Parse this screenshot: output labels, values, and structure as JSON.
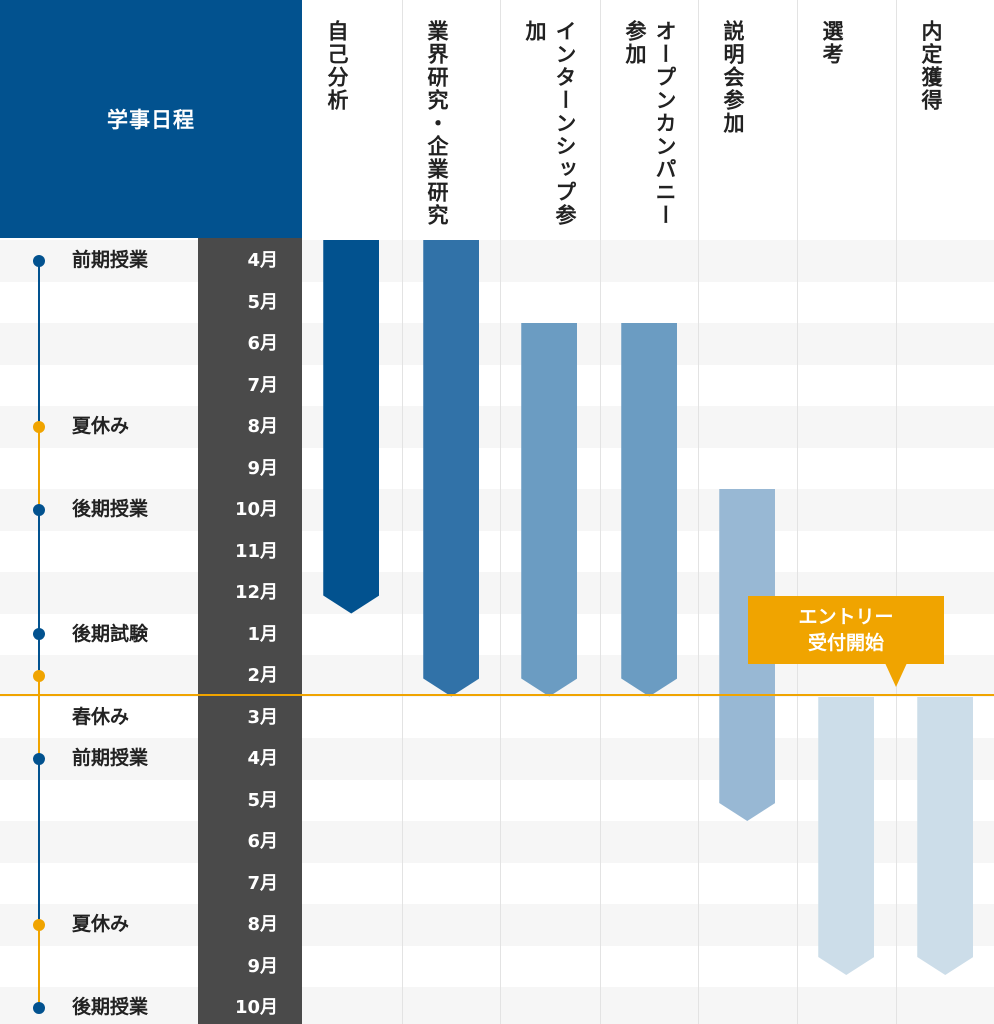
{
  "header": {
    "title": "学事日程"
  },
  "columns": [
    {
      "id": "self_analysis",
      "label": "自己分析"
    },
    {
      "id": "industry_research",
      "label": "業界研究・企業研究"
    },
    {
      "id": "internship",
      "label": "インターンシップ参加"
    },
    {
      "id": "open_company",
      "label": "オープンカンパニー参加"
    },
    {
      "id": "info_session",
      "label": "説明会参加"
    },
    {
      "id": "selection",
      "label": "選考"
    },
    {
      "id": "offer",
      "label": "内定獲得"
    }
  ],
  "months": [
    "4月",
    "5月",
    "6月",
    "7月",
    "8月",
    "9月",
    "10月",
    "11月",
    "12月",
    "1月",
    "2月",
    "3月",
    "4月",
    "5月",
    "6月",
    "7月",
    "8月",
    "9月",
    "10月"
  ],
  "terms": [
    {
      "label": "前期授業",
      "row": 0,
      "dot": "blue"
    },
    {
      "label": "夏休み",
      "row": 4,
      "dot": "orange"
    },
    {
      "label": "後期授業",
      "row": 6,
      "dot": "blue"
    },
    {
      "label": "後期試験",
      "row": 9,
      "dot": "blue"
    },
    {
      "label": "",
      "row": 10,
      "dot": "orange"
    },
    {
      "label": "春休み",
      "row": 11,
      "dot": "none"
    },
    {
      "label": "前期授業",
      "row": 12,
      "dot": "blue"
    },
    {
      "label": "夏休み",
      "row": 16,
      "dot": "orange"
    },
    {
      "label": "後期授業",
      "row": 18,
      "dot": "blue"
    }
  ],
  "bars": [
    {
      "column": "self_analysis",
      "start_month_index": 0,
      "end_month_index": 8,
      "color": "#02528f"
    },
    {
      "column": "industry_research",
      "start_month_index": 0,
      "end_month_index": 10,
      "color": "#3172a8"
    },
    {
      "column": "internship",
      "start_month_index": 2,
      "end_month_index": 10,
      "color": "#6b9cc2"
    },
    {
      "column": "open_company",
      "start_month_index": 2,
      "end_month_index": 10,
      "color": "#6b9cc2"
    },
    {
      "column": "info_session",
      "start_month_index": 6,
      "end_month_index": 13,
      "color": "#98b8d4"
    },
    {
      "column": "selection",
      "start_month_index": 11,
      "end_month_index": 17,
      "color": "#ccdde9"
    },
    {
      "column": "offer",
      "start_month_index": 11,
      "end_month_index": 17,
      "color": "#ccdde9"
    }
  ],
  "entry_callout": {
    "line1": "エントリー",
    "line2": "受付開始"
  },
  "colors": {
    "navy": "#02528f",
    "orange": "#f0a400",
    "month_bg": "#4a4a4a",
    "stripe": "#f6f6f6"
  }
}
